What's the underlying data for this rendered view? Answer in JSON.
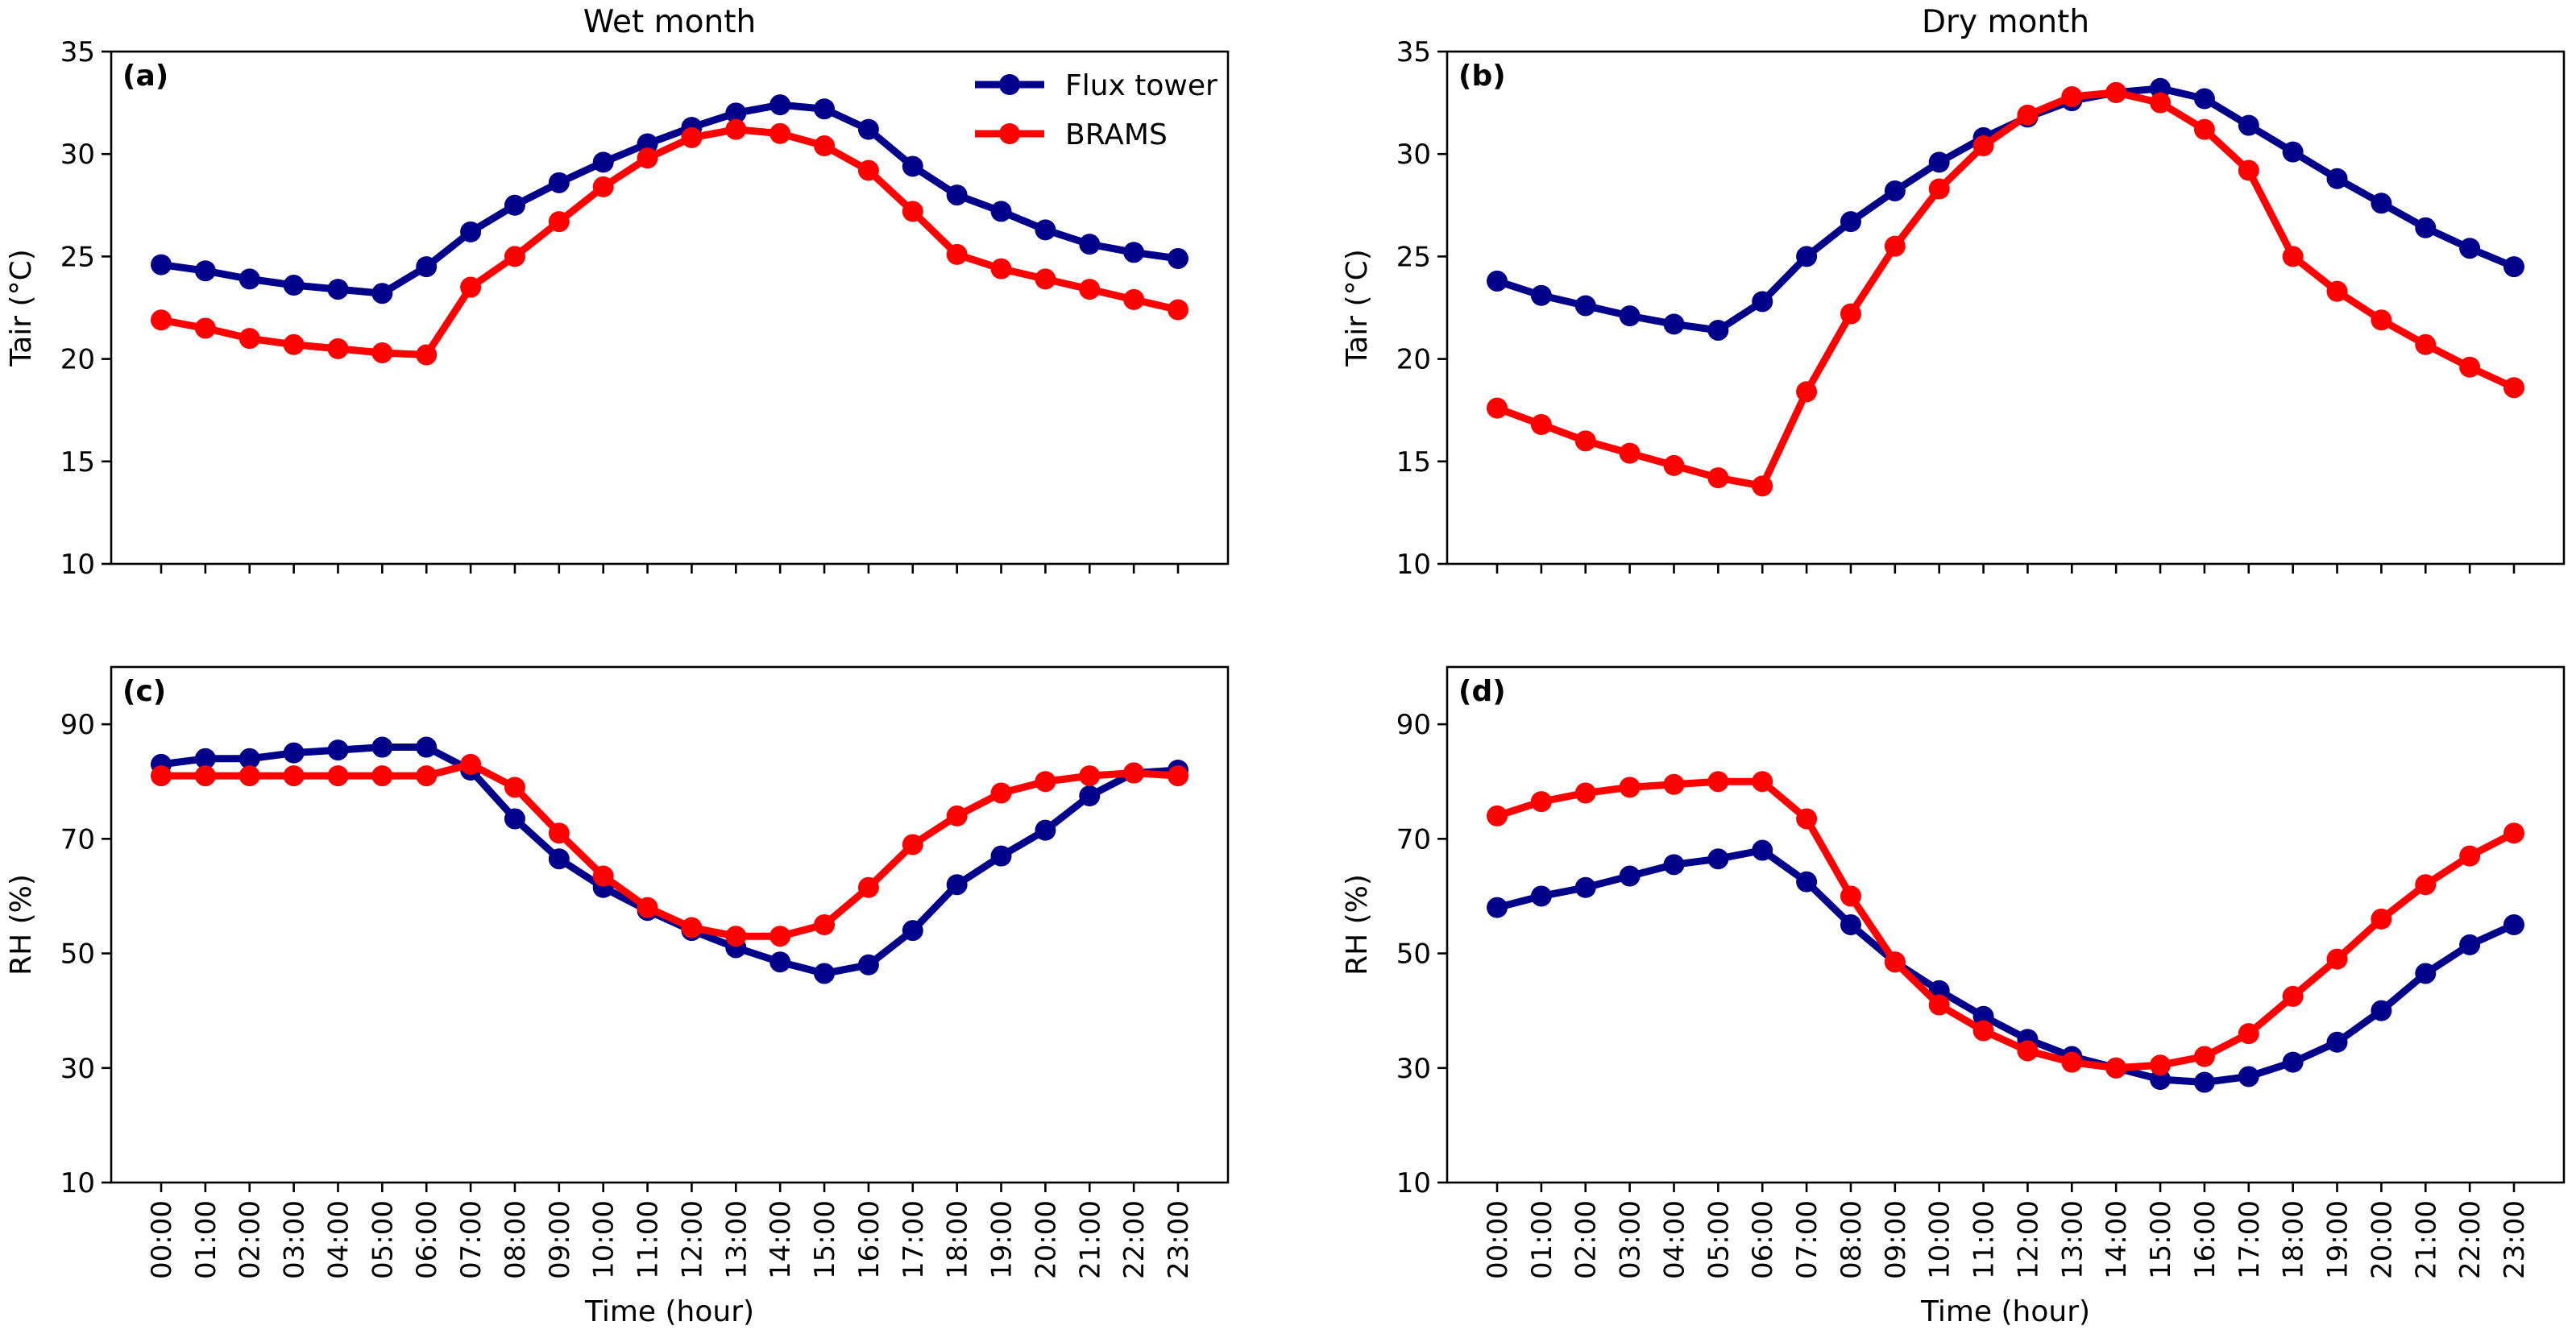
{
  "colors": {
    "flux": "#00008B",
    "brams": "#FF0000"
  },
  "legend": [
    {
      "label": "Flux tower",
      "color": "#00008B"
    },
    {
      "label": "BRAMS",
      "color": "#FF0000"
    }
  ],
  "chart_data": [
    {
      "id": "a",
      "type": "line",
      "tag": "(a)",
      "title": "Wet month",
      "xlabel": "",
      "ylabel": "Tair (°C)",
      "ylim": [
        10,
        35
      ],
      "yticks": [
        10,
        15,
        20,
        25,
        30,
        35
      ],
      "categories": [
        "00:00",
        "01:00",
        "02:00",
        "03:00",
        "04:00",
        "05:00",
        "06:00",
        "07:00",
        "08:00",
        "09:00",
        "10:00",
        "11:00",
        "12:00",
        "13:00",
        "14:00",
        "15:00",
        "16:00",
        "17:00",
        "18:00",
        "19:00",
        "20:00",
        "21:00",
        "22:00",
        "23:00"
      ],
      "series": [
        {
          "name": "Flux tower",
          "values": [
            24.6,
            24.3,
            23.9,
            23.6,
            23.4,
            23.2,
            24.5,
            26.2,
            27.5,
            28.6,
            29.6,
            30.5,
            31.3,
            32.0,
            32.4,
            32.2,
            31.2,
            29.4,
            28.0,
            27.2,
            26.3,
            25.6,
            25.2,
            24.9
          ]
        },
        {
          "name": "BRAMS",
          "values": [
            21.9,
            21.5,
            21.0,
            20.7,
            20.5,
            20.3,
            20.2,
            23.5,
            25.0,
            26.7,
            28.4,
            29.8,
            30.8,
            31.2,
            31.0,
            30.4,
            29.2,
            27.2,
            25.1,
            24.4,
            23.9,
            23.4,
            22.9,
            22.4
          ]
        }
      ]
    },
    {
      "id": "b",
      "type": "line",
      "tag": "(b)",
      "title": "Dry month",
      "xlabel": "",
      "ylabel": "Tair (°C)",
      "ylim": [
        10,
        35
      ],
      "yticks": [
        10,
        15,
        20,
        25,
        30,
        35
      ],
      "categories": [
        "00:00",
        "01:00",
        "02:00",
        "03:00",
        "04:00",
        "05:00",
        "06:00",
        "07:00",
        "08:00",
        "09:00",
        "10:00",
        "11:00",
        "12:00",
        "13:00",
        "14:00",
        "15:00",
        "16:00",
        "17:00",
        "18:00",
        "19:00",
        "20:00",
        "21:00",
        "22:00",
        "23:00"
      ],
      "series": [
        {
          "name": "Flux tower",
          "values": [
            23.8,
            23.1,
            22.6,
            22.1,
            21.7,
            21.4,
            22.8,
            25.0,
            26.7,
            28.2,
            29.6,
            30.8,
            31.8,
            32.6,
            33.0,
            33.2,
            32.7,
            31.4,
            30.1,
            28.8,
            27.6,
            26.4,
            25.4,
            24.5
          ]
        },
        {
          "name": "BRAMS",
          "values": [
            17.6,
            16.8,
            16.0,
            15.4,
            14.8,
            14.2,
            13.8,
            18.4,
            22.2,
            25.5,
            28.3,
            30.4,
            31.9,
            32.8,
            33.0,
            32.5,
            31.2,
            29.2,
            25.0,
            23.3,
            21.9,
            20.7,
            19.6,
            18.6
          ]
        }
      ]
    },
    {
      "id": "c",
      "type": "line",
      "tag": "(c)",
      "title": "",
      "xlabel": "Time (hour)",
      "ylabel": "RH (%)",
      "ylim": [
        10,
        100
      ],
      "yticks": [
        10,
        30,
        50,
        70,
        90
      ],
      "categories": [
        "00:00",
        "01:00",
        "02:00",
        "03:00",
        "04:00",
        "05:00",
        "06:00",
        "07:00",
        "08:00",
        "09:00",
        "10:00",
        "11:00",
        "12:00",
        "13:00",
        "14:00",
        "15:00",
        "16:00",
        "17:00",
        "18:00",
        "19:00",
        "20:00",
        "21:00",
        "22:00",
        "23:00"
      ],
      "series": [
        {
          "name": "Flux tower",
          "values": [
            83.0,
            84.0,
            84.0,
            85.0,
            85.5,
            86.0,
            86.0,
            82.0,
            73.5,
            66.5,
            61.5,
            57.5,
            54.0,
            51.0,
            48.5,
            46.5,
            48.0,
            54.0,
            62.0,
            67.0,
            71.5,
            77.5,
            81.5,
            82.0
          ]
        },
        {
          "name": "BRAMS",
          "values": [
            81.0,
            81.0,
            81.0,
            81.0,
            81.0,
            81.0,
            81.0,
            83.0,
            79.0,
            71.0,
            63.5,
            58.0,
            54.5,
            53.0,
            53.0,
            55.0,
            61.5,
            69.0,
            74.0,
            78.0,
            80.0,
            81.0,
            81.5,
            81.0
          ]
        }
      ]
    },
    {
      "id": "d",
      "type": "line",
      "tag": "(d)",
      "title": "",
      "xlabel": "Time (hour)",
      "ylabel": "RH (%)",
      "ylim": [
        10,
        100
      ],
      "yticks": [
        10,
        30,
        50,
        70,
        90
      ],
      "categories": [
        "00:00",
        "01:00",
        "02:00",
        "03:00",
        "04:00",
        "05:00",
        "06:00",
        "07:00",
        "08:00",
        "09:00",
        "10:00",
        "11:00",
        "12:00",
        "13:00",
        "14:00",
        "15:00",
        "16:00",
        "17:00",
        "18:00",
        "19:00",
        "20:00",
        "21:00",
        "22:00",
        "23:00"
      ],
      "series": [
        {
          "name": "Flux tower",
          "values": [
            58.0,
            60.0,
            61.5,
            63.5,
            65.5,
            66.5,
            68.0,
            62.5,
            55.0,
            48.5,
            43.5,
            39.0,
            35.0,
            32.0,
            30.0,
            28.0,
            27.5,
            28.5,
            31.0,
            34.5,
            40.0,
            46.5,
            51.5,
            55.0
          ]
        },
        {
          "name": "BRAMS",
          "values": [
            74.0,
            76.5,
            78.0,
            79.0,
            79.5,
            80.0,
            80.0,
            73.5,
            60.0,
            48.5,
            41.0,
            36.5,
            33.0,
            31.0,
            30.0,
            30.5,
            32.0,
            36.0,
            42.5,
            49.0,
            56.0,
            62.0,
            67.0,
            71.0
          ]
        }
      ]
    }
  ]
}
